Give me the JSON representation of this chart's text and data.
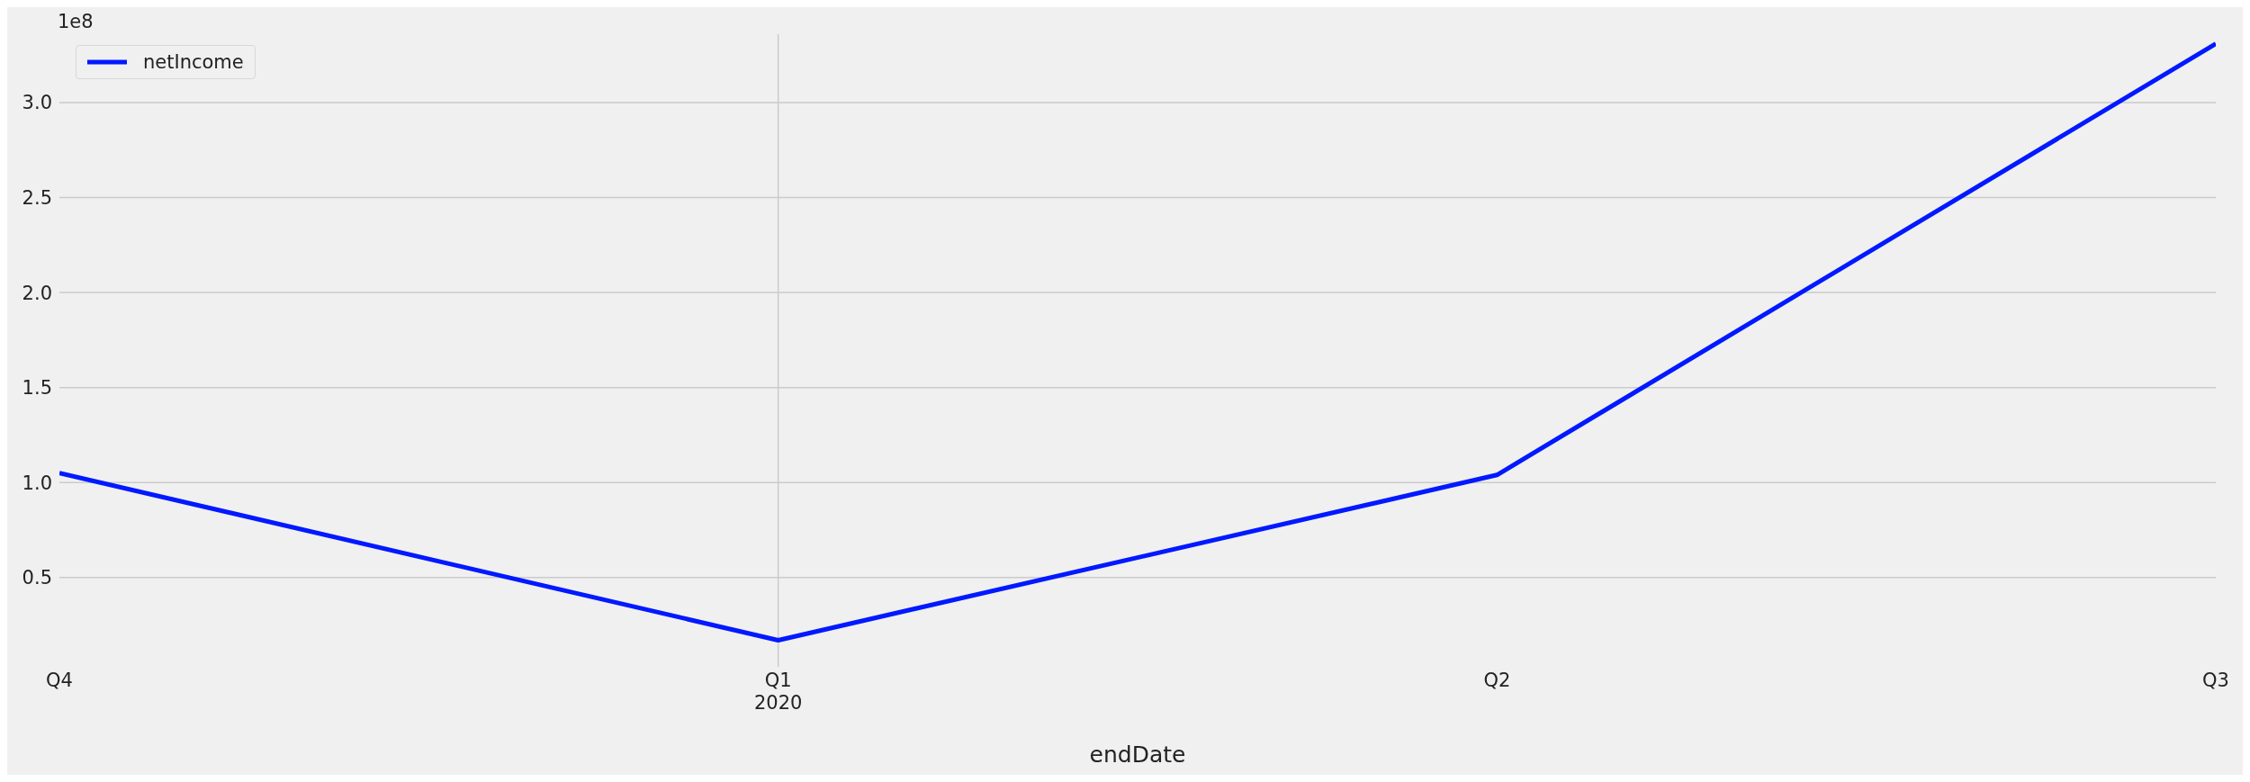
{
  "chart_data": {
    "type": "line",
    "xlabel": "endDate",
    "annotations": [
      "1e8"
    ],
    "categories": [
      "Q4",
      "Q1\n2020",
      "Q2",
      "Q3"
    ],
    "series": [
      {
        "name": "netIncome",
        "color": "#0019ff",
        "values": [
          1.05,
          0.17,
          1.04,
          3.31
        ]
      }
    ],
    "ylim": [
      0.03,
      3.36
    ],
    "yticks": [
      0.5,
      {
        "value": 1,
        "label": "1.0"
      },
      1.5,
      {
        "value": 2,
        "label": "2.0"
      },
      2.5,
      {
        "value": 3,
        "label": "3.0"
      }
    ],
    "ref_lines": [
      {
        "axis": "x",
        "value": "Q1\n2020",
        "color": "#cbcbcb"
      }
    ],
    "grid": "y",
    "legend": "top left",
    "marker": "none",
    "line_style": "solid"
  }
}
